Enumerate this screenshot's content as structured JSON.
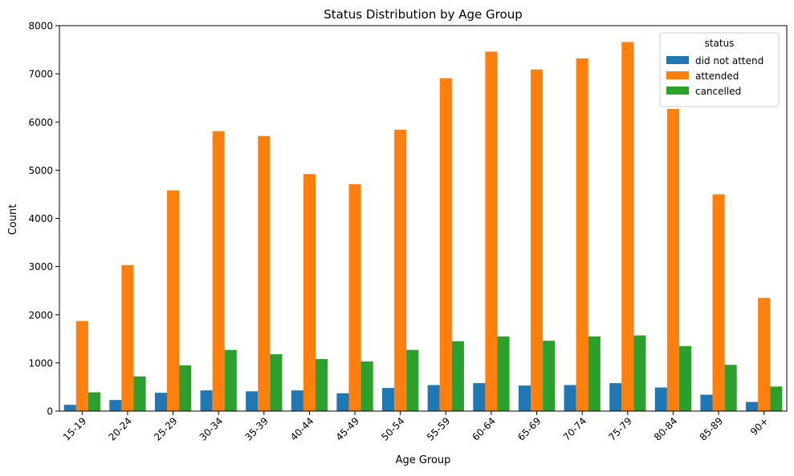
{
  "chart_data": {
    "type": "bar",
    "title": "Status Distribution by Age Group",
    "xlabel": "Age Group",
    "ylabel": "Count",
    "ylim": [
      0,
      8000
    ],
    "yticks": [
      0,
      1000,
      2000,
      3000,
      4000,
      5000,
      6000,
      7000,
      8000
    ],
    "categories": [
      "15-19",
      "20-24",
      "25-29",
      "30-34",
      "35-39",
      "40-44",
      "45-49",
      "50-54",
      "55-59",
      "60-64",
      "65-69",
      "70-74",
      "75-79",
      "80-84",
      "85-89",
      "90+"
    ],
    "legend": {
      "title": "status",
      "position": "top-right"
    },
    "grid": false,
    "series": [
      {
        "name": "did not attend",
        "color": "#1f77b4",
        "values": [
          130,
          230,
          380,
          430,
          410,
          430,
          370,
          480,
          540,
          580,
          530,
          540,
          580,
          490,
          340,
          190
        ]
      },
      {
        "name": "attended",
        "color": "#ff7f0e",
        "values": [
          1870,
          3030,
          4580,
          5810,
          5710,
          4920,
          4710,
          5840,
          6910,
          7460,
          7090,
          7320,
          7660,
          6270,
          4500,
          2350
        ]
      },
      {
        "name": "cancelled",
        "color": "#2ca02c",
        "values": [
          390,
          720,
          950,
          1270,
          1180,
          1080,
          1030,
          1270,
          1450,
          1550,
          1460,
          1550,
          1570,
          1350,
          960,
          510
        ]
      }
    ]
  }
}
